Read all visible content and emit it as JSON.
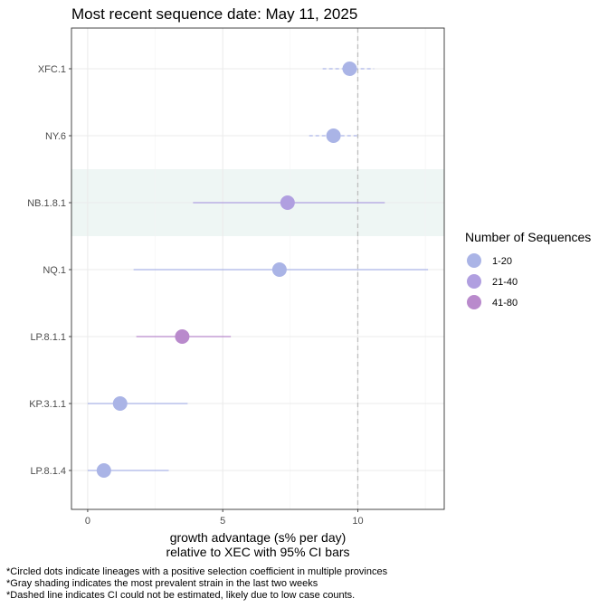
{
  "chart_data": {
    "type": "scatter",
    "title": "Most recent sequence date: May 11, 2025",
    "xlabel_line1": "growth advantage (s% per day)",
    "xlabel_line2": "relative to  XEC  with 95% CI bars",
    "x_ticks": [
      0,
      5,
      10
    ],
    "xlim": [
      -0.6,
      13.2
    ],
    "reference_line_x": 10,
    "categories": [
      "XFC.1",
      "NY.6",
      "NB.1.8.1",
      "NQ.1",
      "LP.8.1.1",
      "KP.3.1.1",
      "LP.8.1.4"
    ],
    "points": [
      {
        "lineage": "XFC.1",
        "value": 9.7,
        "ci_low": 8.7,
        "ci_high": 10.6,
        "ci_estimated": false,
        "size_group": "1-20"
      },
      {
        "lineage": "NY.6",
        "value": 9.1,
        "ci_low": 8.2,
        "ci_high": 10.0,
        "ci_estimated": false,
        "size_group": "1-20"
      },
      {
        "lineage": "NB.1.8.1",
        "value": 7.4,
        "ci_low": 3.9,
        "ci_high": 11.0,
        "ci_estimated": true,
        "size_group": "21-40"
      },
      {
        "lineage": "NQ.1",
        "value": 7.1,
        "ci_low": 1.7,
        "ci_high": 12.6,
        "ci_estimated": true,
        "size_group": "1-20"
      },
      {
        "lineage": "LP.8.1.1",
        "value": 3.5,
        "ci_low": 1.8,
        "ci_high": 5.3,
        "ci_estimated": true,
        "size_group": "41-80"
      },
      {
        "lineage": "KP.3.1.1",
        "value": 1.2,
        "ci_low": 0.0,
        "ci_high": 3.7,
        "ci_estimated": true,
        "size_group": "1-20"
      },
      {
        "lineage": "LP.8.1.4",
        "value": 0.6,
        "ci_low": 0.0,
        "ci_high": 3.0,
        "ci_estimated": true,
        "size_group": "1-20"
      }
    ],
    "shaded_lineage": "NB.1.8.1",
    "grid": true,
    "legend": {
      "title": "Number of Sequences",
      "placement": "right",
      "entries": [
        {
          "label": "1-20",
          "color": "#aab4e6"
        },
        {
          "label": "21-40",
          "color": "#b09fe0"
        },
        {
          "label": "41-80",
          "color": "#b98acc"
        }
      ]
    },
    "colors": {
      "shading": "#eef6f4",
      "reference_line": "#bdbdbd"
    }
  },
  "footnotes": [
    "*Circled dots indicate lineages with a positive selection coefficient in multiple provinces",
    "*Gray shading indicates the most prevalent strain in the last two weeks",
    "*Dashed line indicates CI could not be estimated, likely due to low case counts."
  ]
}
